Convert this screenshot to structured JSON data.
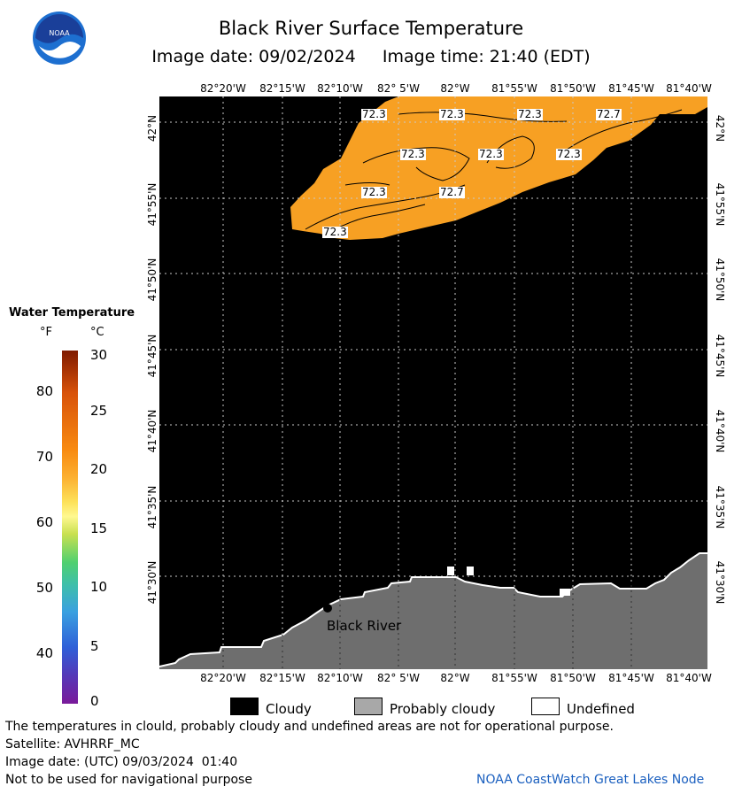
{
  "header": {
    "title": "Black River Surface Temperature",
    "image_date": "Image date: 09/02/2024",
    "image_time": "Image time: 21:40 (EDT)"
  },
  "map": {
    "lon_labels": [
      "82°20'W",
      "82°15'W",
      "82°10'W",
      "82° 5'W",
      "82°W",
      "81°55'W",
      "81°50'W",
      "81°45'W",
      "81°40'W"
    ],
    "lat_labels": [
      "42°N",
      "41°55'N",
      "41°50'N",
      "41°45'N",
      "41°40'N",
      "41°35'N",
      "41°30'N"
    ],
    "contour_labels": [
      "72.3",
      "72.3",
      "72.3",
      "72.7",
      "72.3",
      "72.3",
      "72.3",
      "72.3",
      "72.7",
      "72.3"
    ],
    "place_label": "Black River",
    "colors": {
      "water_valid": "#f7a023",
      "cloud": "#000000",
      "land": "#6e6e6e",
      "undefined": "#ffffff"
    }
  },
  "legend": {
    "title": "Water Temperature",
    "unit_f": "°F",
    "unit_c": "°C",
    "f_ticks": [
      "80",
      "70",
      "60",
      "50",
      "40"
    ],
    "c_ticks": [
      "30",
      "25",
      "20",
      "15",
      "10",
      "5",
      "0"
    ]
  },
  "key": {
    "cloudy": "Cloudy",
    "probably_cloudy": "Probably cloudy",
    "undefined": "Undefined"
  },
  "footer": {
    "disclaimer": "The temperatures in clould, probably cloudy and undefined areas are not for operational purpose.",
    "satellite": "Satellite: AVHRRF_MC",
    "utc_date": "Image date: (UTC) 09/03/2024  01:40",
    "nav": "Not to be used for navigational purpose",
    "node": "NOAA CoastWatch Great Lakes Node"
  }
}
